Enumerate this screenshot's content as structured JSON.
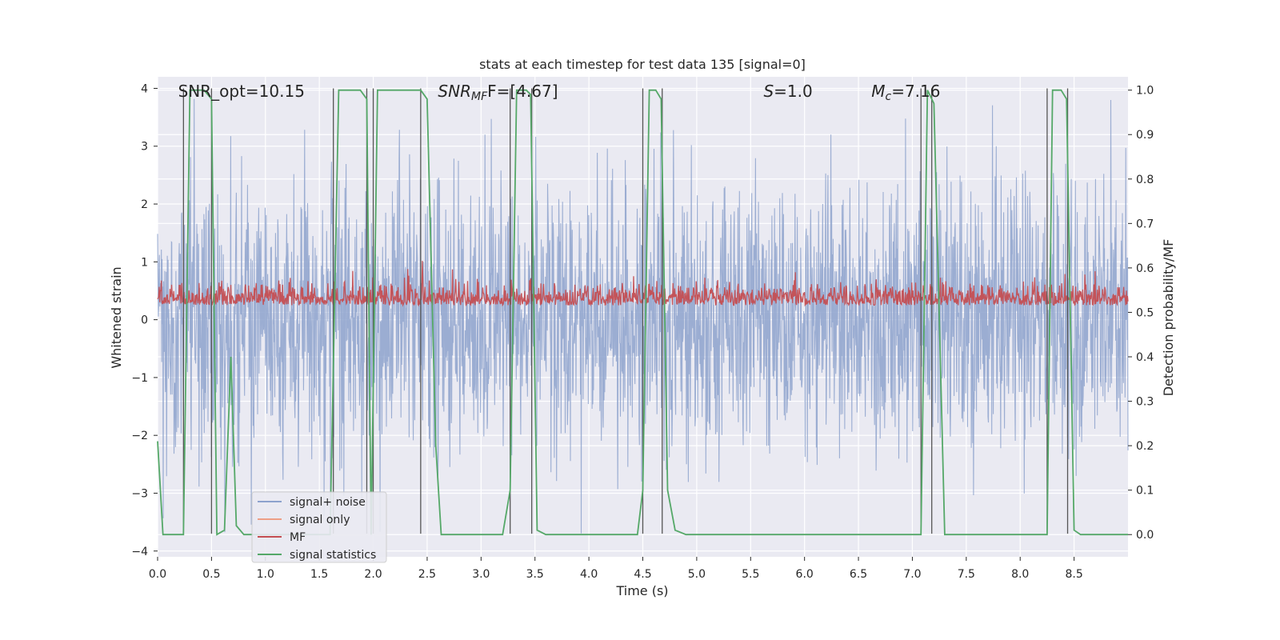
{
  "chart_data": {
    "type": "line",
    "title": "stats at each timestep for test data 135 [signal=0]",
    "xlabel": "Time (s)",
    "ylabel_left": "Whitened strain",
    "ylabel_right": "Detection probability/MF",
    "xlim": [
      0.0,
      9.0
    ],
    "ylim_left": [
      -4.1,
      4.2
    ],
    "ylim_right": [
      -0.05,
      1.03
    ],
    "x_ticks": [
      "0.0",
      "0.5",
      "1.0",
      "1.5",
      "2.0",
      "2.5",
      "3.0",
      "3.5",
      "4.0",
      "4.5",
      "5.0",
      "5.5",
      "6.0",
      "6.5",
      "7.0",
      "7.5",
      "8.0",
      "8.5"
    ],
    "y_ticks_left": [
      "-4",
      "-3",
      "-2",
      "-1",
      "0",
      "1",
      "2",
      "3",
      "4"
    ],
    "y_ticks_right": [
      "0.0",
      "0.1",
      "0.2",
      "0.3",
      "0.4",
      "0.5",
      "0.6",
      "0.7",
      "0.8",
      "0.9",
      "1.0"
    ],
    "annotations": [
      {
        "id": "snr_opt",
        "text": "SNR_opt=10.15",
        "x": 0.19
      },
      {
        "id": "snr_mf",
        "text": "SNR",
        "sub": "MF",
        "after": "F=[4.67]",
        "x": 2.6
      },
      {
        "id": "s_val",
        "text": "S",
        "after": "=1.0",
        "x": 5.62
      },
      {
        "id": "mc_val",
        "text": "M",
        "sub": "c",
        "after": "=7.16",
        "x": 6.62
      }
    ],
    "legend": {
      "placement": "lower-left",
      "entries": [
        {
          "label": "signal+ noise",
          "color": "#8da2cd"
        },
        {
          "label": "signal only",
          "color": "#ee9f86"
        },
        {
          "label": "MF",
          "color": "#c44e52"
        },
        {
          "label": "signal statistics",
          "color": "#55a868"
        }
      ]
    },
    "series": [
      {
        "name": "signal+ noise",
        "axis": "left",
        "approx_range": [
          -3.7,
          4.0
        ],
        "color": "#8da2cd"
      },
      {
        "name": "signal only",
        "axis": "left",
        "values": [],
        "color": "#ee9f86"
      },
      {
        "name": "MF",
        "axis": "right",
        "approx_range": [
          0.5,
          0.63
        ],
        "color": "#c44e52"
      },
      {
        "name": "signal statistics",
        "axis": "right",
        "color": "#55a868",
        "points": [
          [
            0.0,
            0.21
          ],
          [
            0.05,
            0.0
          ],
          [
            0.24,
            0.0
          ],
          [
            0.3,
            1.0
          ],
          [
            0.43,
            1.0
          ],
          [
            0.5,
            0.98
          ],
          [
            0.55,
            0.0
          ],
          [
            0.62,
            0.01
          ],
          [
            0.68,
            0.4
          ],
          [
            0.73,
            0.02
          ],
          [
            0.8,
            0.0
          ],
          [
            1.6,
            0.0
          ],
          [
            1.68,
            1.0
          ],
          [
            1.88,
            1.0
          ],
          [
            1.94,
            0.98
          ],
          [
            1.98,
            0.0
          ],
          [
            2.04,
            1.0
          ],
          [
            2.44,
            1.0
          ],
          [
            2.5,
            0.98
          ],
          [
            2.58,
            0.2
          ],
          [
            2.63,
            0.0
          ],
          [
            3.2,
            0.0
          ],
          [
            3.27,
            0.1
          ],
          [
            3.33,
            1.0
          ],
          [
            3.42,
            1.0
          ],
          [
            3.46,
            0.99
          ],
          [
            3.52,
            0.01
          ],
          [
            3.6,
            0.0
          ],
          [
            4.25,
            0.0
          ],
          [
            4.45,
            0.0
          ],
          [
            4.5,
            0.1
          ],
          [
            4.56,
            1.0
          ],
          [
            4.62,
            1.0
          ],
          [
            4.67,
            0.98
          ],
          [
            4.73,
            0.1
          ],
          [
            4.8,
            0.01
          ],
          [
            4.9,
            0.0
          ],
          [
            6.9,
            0.0
          ],
          [
            7.08,
            0.0
          ],
          [
            7.14,
            1.0
          ],
          [
            7.2,
            0.97
          ],
          [
            7.3,
            0.0
          ],
          [
            8.25,
            0.0
          ],
          [
            8.3,
            1.0
          ],
          [
            8.38,
            1.0
          ],
          [
            8.43,
            0.98
          ],
          [
            8.5,
            0.01
          ],
          [
            8.56,
            0.0
          ],
          [
            9.0,
            0.0
          ]
        ]
      }
    ],
    "vertical_markers_x": [
      0.24,
      0.5,
      1.63,
      1.94,
      2.0,
      2.44,
      3.27,
      3.47,
      4.5,
      4.68,
      7.08,
      7.18,
      8.25,
      8.44
    ]
  }
}
